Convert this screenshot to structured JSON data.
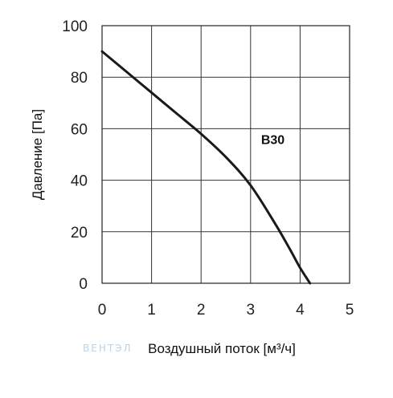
{
  "chart_data": {
    "type": "line",
    "xlabel": "Воздушный поток [м³/ч]",
    "ylabel": "Давление [Па]",
    "xlim": [
      0,
      5
    ],
    "ylim": [
      0,
      100
    ],
    "xticks": [
      0,
      1,
      2,
      3,
      4,
      5
    ],
    "yticks": [
      0,
      20,
      40,
      60,
      80,
      100
    ],
    "grid": true,
    "series": [
      {
        "name": "B30",
        "color": "#1a1a1a",
        "x": [
          0,
          0.5,
          1.0,
          1.5,
          2.0,
          2.5,
          3.0,
          3.5,
          3.8,
          4.0,
          4.2
        ],
        "y": [
          90,
          82,
          74,
          66,
          58,
          49,
          38,
          23,
          13,
          6,
          0
        ]
      }
    ]
  },
  "watermark": "ВЕНТЭЛ"
}
